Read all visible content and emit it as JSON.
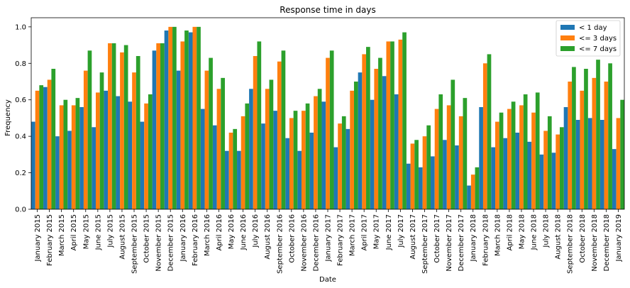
{
  "chart_data": {
    "type": "bar",
    "title": "Response time in days",
    "xlabel": "Date",
    "ylabel": "Frequency",
    "ylim": [
      0,
      1.05
    ],
    "yticks": [
      "0.0",
      "0.2",
      "0.4",
      "0.6",
      "0.8",
      "1.0"
    ],
    "grid": false,
    "legend_position": "top-right",
    "categories": [
      "January 2015",
      "February 2015",
      "March 2015",
      "April 2015",
      "May 2015",
      "June 2015",
      "July 2015",
      "August 2015",
      "September 2015",
      "October 2015",
      "November 2015",
      "December 2015",
      "January 2016",
      "February 2016",
      "March 2016",
      "April 2016",
      "May 2016",
      "June 2016",
      "July 2016",
      "August 2016",
      "September 2016",
      "October 2016",
      "November 2016",
      "December 2016",
      "January 2017",
      "February 2017",
      "March 2017",
      "April 2017",
      "May 2017",
      "June 2017",
      "July 2017",
      "August 2017",
      "September 2017",
      "October 2017",
      "November 2017",
      "December 2017",
      "January 2018",
      "February 2018",
      "March 2018",
      "April 2018",
      "May 2018",
      "June 2018",
      "July 2018",
      "August 2018",
      "September 2018",
      "October 2018",
      "November 2018",
      "December 2018",
      "January 2019"
    ],
    "series": [
      {
        "name": "< 1 day",
        "color": "#1f77b4",
        "values": [
          0.48,
          0.67,
          0.4,
          0.43,
          0.56,
          0.45,
          0.65,
          0.62,
          0.59,
          0.48,
          0.87,
          0.98,
          0.76,
          0.97,
          0.55,
          0.46,
          0.32,
          0.32,
          0.66,
          0.47,
          0.54,
          0.39,
          0.32,
          0.42,
          0.59,
          0.34,
          0.44,
          0.75,
          0.6,
          0.73,
          0.63,
          0.25,
          0.23,
          0.29,
          0.38,
          0.35,
          0.13,
          0.56,
          0.34,
          0.39,
          0.42,
          0.37,
          0.3,
          0.31,
          0.56,
          0.49,
          0.5,
          0.49,
          0.33
        ]
      },
      {
        "name": "<= 3 days",
        "color": "#ff7f0e",
        "values": [
          0.65,
          0.71,
          0.57,
          0.57,
          0.76,
          0.64,
          0.91,
          0.86,
          0.75,
          0.58,
          0.91,
          1.0,
          0.92,
          1.0,
          0.76,
          0.66,
          0.42,
          0.51,
          0.84,
          0.66,
          0.81,
          0.5,
          0.54,
          0.62,
          0.83,
          0.47,
          0.65,
          0.85,
          0.77,
          0.92,
          0.93,
          0.36,
          0.4,
          0.55,
          0.57,
          0.51,
          0.19,
          0.8,
          0.48,
          0.55,
          0.57,
          0.53,
          0.43,
          0.41,
          0.7,
          0.65,
          0.72,
          0.7,
          0.5
        ]
      },
      {
        "name": "<= 7 days",
        "color": "#2ca02c",
        "values": [
          0.68,
          0.77,
          0.6,
          0.61,
          0.87,
          0.75,
          0.91,
          0.9,
          0.84,
          0.63,
          0.91,
          1.0,
          0.98,
          1.0,
          0.83,
          0.72,
          0.44,
          0.58,
          0.92,
          0.71,
          0.87,
          0.54,
          0.58,
          0.66,
          0.87,
          0.51,
          0.7,
          0.89,
          0.83,
          0.92,
          0.97,
          0.38,
          0.46,
          0.63,
          0.71,
          0.61,
          0.23,
          0.85,
          0.53,
          0.59,
          0.63,
          0.64,
          0.51,
          0.45,
          0.78,
          0.77,
          0.82,
          0.8,
          0.6
        ]
      }
    ]
  }
}
